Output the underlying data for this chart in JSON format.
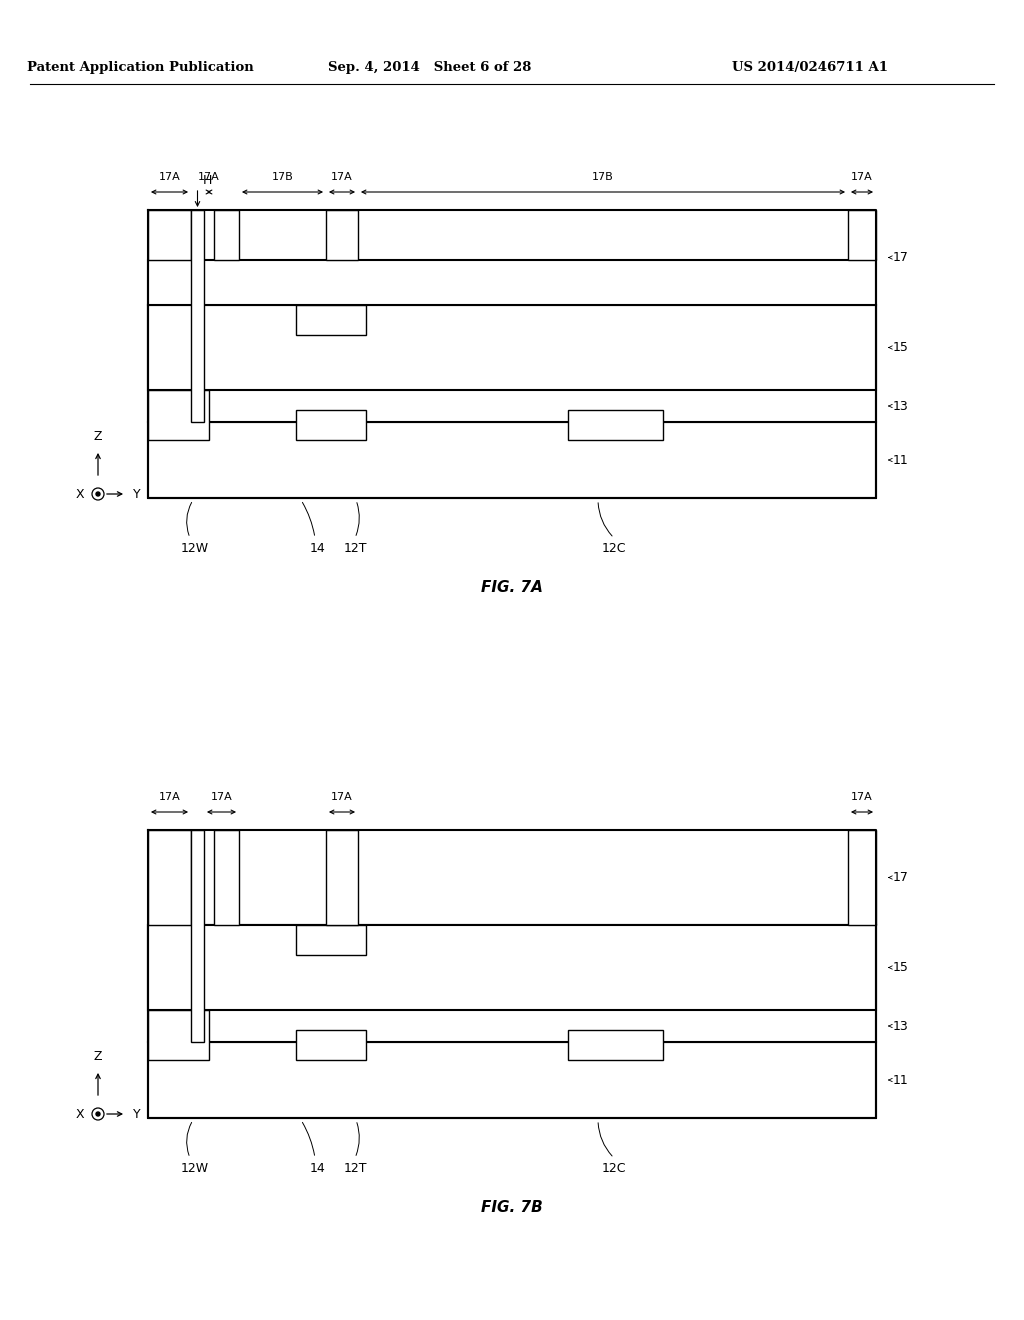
{
  "header_left": "Patent Application Publication",
  "header_mid": "Sep. 4, 2014   Sheet 6 of 28",
  "header_right": "US 2014/0246711 A1",
  "fig7a_label": "FIG. 7A",
  "fig7b_label": "FIG. 7B",
  "bg_color": "#ffffff",
  "line_color": "#000000"
}
